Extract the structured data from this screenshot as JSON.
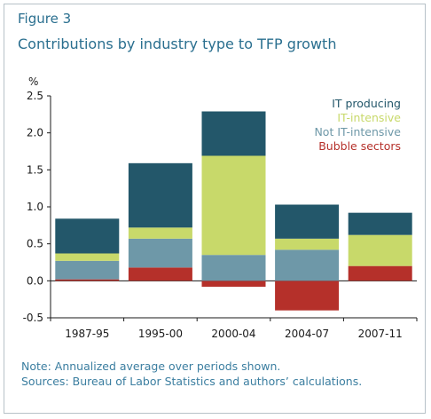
{
  "figure": {
    "label": "Figure 3",
    "title": "Contributions by industry type to TFP growth"
  },
  "footer": {
    "note": "Note: Annualized average over periods shown.",
    "sources": "Sources: Bureau of Labor Statistics and authors’ calculations."
  },
  "chart_data": {
    "type": "bar",
    "stacked": true,
    "title": "Contributions by industry type to TFP growth",
    "ylabel": "%",
    "ylim": [
      -0.5,
      2.5
    ],
    "yticks": [
      "2.5",
      "2.0",
      "1.5",
      "1.0",
      "0.5",
      "0.0",
      "-0.5"
    ],
    "categories": [
      "1987-95",
      "1995-00",
      "2000-04",
      "2004-07",
      "2007-11"
    ],
    "grid": false,
    "legend_position": "top-right",
    "series": [
      {
        "name": "Bubble sectors",
        "color": "#b5302a",
        "values": [
          0.02,
          0.18,
          -0.08,
          -0.4,
          0.2
        ]
      },
      {
        "name": "Not IT-intensive",
        "color": "#6e98a8",
        "values": [
          0.25,
          0.39,
          0.35,
          0.42,
          0.0
        ]
      },
      {
        "name": "IT-intensive",
        "color": "#c8d96a",
        "values": [
          0.1,
          0.15,
          1.34,
          0.15,
          0.42
        ]
      },
      {
        "name": "IT producing",
        "color": "#23576a",
        "values": [
          0.47,
          0.87,
          0.6,
          0.46,
          0.3
        ]
      }
    ],
    "legend_order": [
      "IT producing",
      "IT-intensive",
      "Not IT-intensive",
      "Bubble sectors"
    ]
  }
}
